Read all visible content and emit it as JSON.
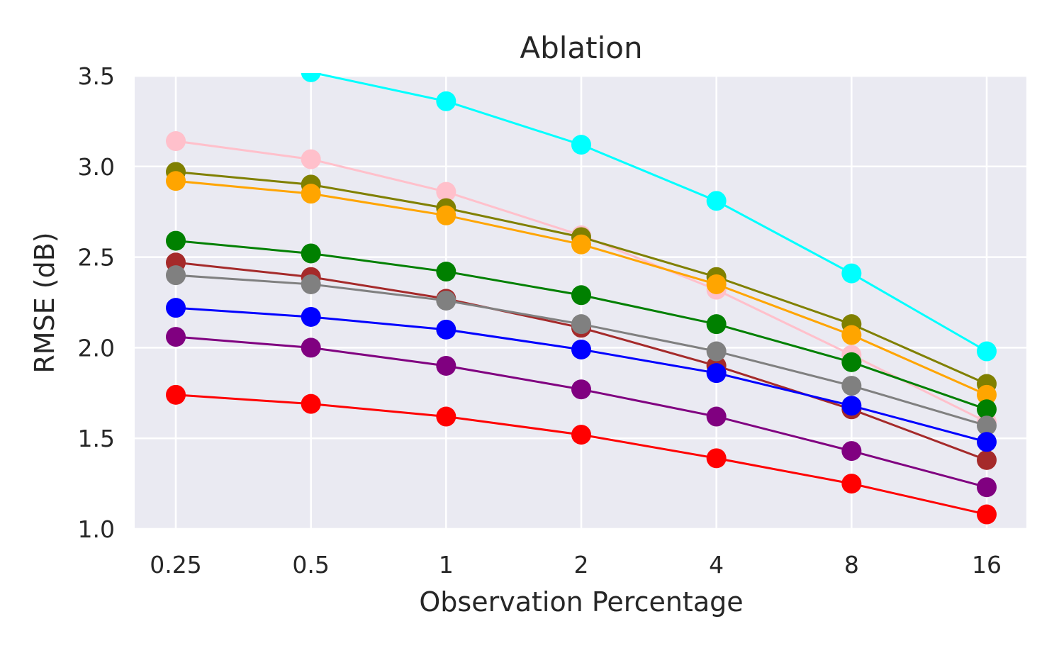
{
  "chart_data": {
    "type": "line",
    "title": "Ablation",
    "xlabel": "Observation Percentage",
    "ylabel": "RMSE (dB)",
    "categories": [
      "0.25",
      "0.5",
      "1",
      "2",
      "4",
      "8",
      "16"
    ],
    "ylim": [
      1.0,
      3.5
    ],
    "yticks": [
      "1.0",
      "1.5",
      "2.0",
      "2.5",
      "3.0",
      "3.5"
    ],
    "grid": true,
    "background": "#eaeaf2",
    "series": [
      {
        "name": "cyan",
        "color": "#00ffff",
        "values": [
          null,
          3.52,
          3.36,
          3.12,
          2.81,
          2.41,
          1.98
        ]
      },
      {
        "name": "pink",
        "color": "#ffc0cb",
        "values": [
          3.14,
          3.04,
          2.86,
          2.62,
          2.32,
          1.96,
          1.59
        ]
      },
      {
        "name": "olive",
        "color": "#808000",
        "values": [
          2.97,
          2.9,
          2.77,
          2.61,
          2.39,
          2.13,
          1.8
        ]
      },
      {
        "name": "orange",
        "color": "#ffa500",
        "values": [
          2.92,
          2.85,
          2.73,
          2.57,
          2.35,
          2.07,
          1.74
        ]
      },
      {
        "name": "green",
        "color": "#008000",
        "values": [
          2.59,
          2.52,
          2.42,
          2.29,
          2.13,
          1.92,
          1.66
        ]
      },
      {
        "name": "brown",
        "color": "#a52a2a",
        "values": [
          2.47,
          2.39,
          2.27,
          2.11,
          1.9,
          1.66,
          1.38
        ]
      },
      {
        "name": "gray",
        "color": "#808080",
        "values": [
          2.4,
          2.35,
          2.26,
          2.13,
          1.98,
          1.79,
          1.57
        ]
      },
      {
        "name": "blue",
        "color": "#0000ff",
        "values": [
          2.22,
          2.17,
          2.1,
          1.99,
          1.86,
          1.68,
          1.48
        ]
      },
      {
        "name": "purple",
        "color": "#800080",
        "values": [
          2.06,
          2.0,
          1.9,
          1.77,
          1.62,
          1.43,
          1.23
        ]
      },
      {
        "name": "red",
        "color": "#ff0000",
        "values": [
          1.74,
          1.69,
          1.62,
          1.52,
          1.39,
          1.25,
          1.08
        ]
      }
    ]
  }
}
